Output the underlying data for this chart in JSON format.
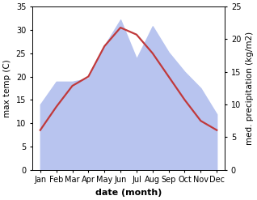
{
  "months": [
    "Jan",
    "Feb",
    "Mar",
    "Apr",
    "May",
    "Jun",
    "Jul",
    "Aug",
    "Sep",
    "Oct",
    "Nov",
    "Dec"
  ],
  "temperature": [
    8.5,
    13.5,
    18.0,
    20.0,
    26.5,
    30.5,
    29.0,
    25.0,
    20.0,
    15.0,
    10.5,
    8.5
  ],
  "precipitation": [
    10.0,
    13.5,
    13.5,
    14.0,
    19.0,
    23.0,
    17.0,
    22.0,
    18.0,
    15.0,
    12.5,
    8.5
  ],
  "temp_color": "#c0393b",
  "precip_fill_color": "#b8c4ef",
  "temp_ylim": [
    0,
    35
  ],
  "precip_ylim": [
    0,
    25
  ],
  "temp_yticks": [
    0,
    5,
    10,
    15,
    20,
    25,
    30,
    35
  ],
  "precip_yticks": [
    0,
    5,
    10,
    15,
    20,
    25
  ],
  "xlabel": "date (month)",
  "ylabel_left": "max temp (C)",
  "ylabel_right": "med. precipitation (kg/m2)",
  "background_color": "#ffffff",
  "xlabel_fontsize": 8,
  "ylabel_fontsize": 7.5,
  "tick_fontsize": 7
}
